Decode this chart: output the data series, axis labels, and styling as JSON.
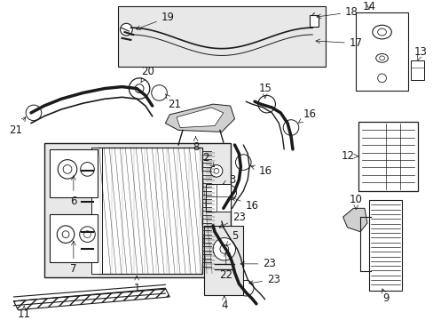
{
  "bg_color": "#ffffff",
  "lc": "#1a1a1a",
  "fig_width": 4.89,
  "fig_height": 3.6,
  "dpi": 100,
  "label_fontsize": 8.5,
  "arrow_lw": 0.5
}
